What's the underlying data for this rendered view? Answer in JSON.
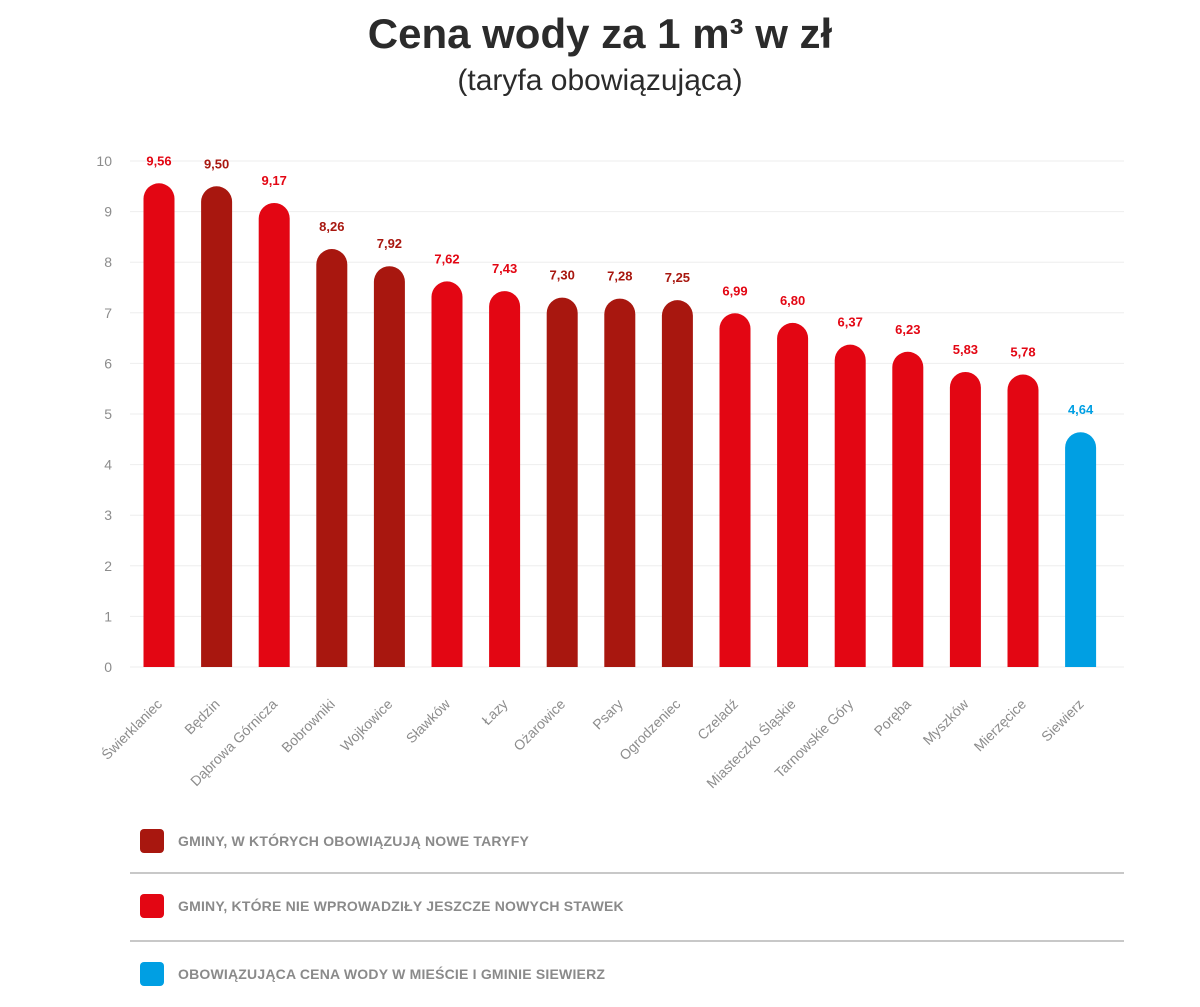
{
  "title": "Cena wody za 1 m³ w zł",
  "subtitle": "(taryfa obowiązująca)",
  "colors": {
    "new_tariff": "#a8170f",
    "no_new_rates": "#e30613",
    "siewierz": "#009fe3",
    "axis_text": "#8c8c8c",
    "grid": "#eeeeee"
  },
  "legend": [
    {
      "label": "GMINY, W KTÓRYCH OBOWIĄZUJĄ NOWE TARYFY",
      "color": "#a8170f"
    },
    {
      "label": "GMINY, KTÓRE NIE WPROWADZIŁY JESZCZE NOWYCH STAWEK",
      "color": "#e30613"
    },
    {
      "label": "OBOWIĄZUJĄCA CENA WODY W MIEŚCIE I GMINIE SIEWIERZ",
      "color": "#009fe3"
    }
  ],
  "chart_data": {
    "type": "bar",
    "title": "Cena wody za 1 m³ w zł",
    "subtitle": "(taryfa obowiązująca)",
    "xlabel": "",
    "ylabel": "",
    "ylim": [
      0,
      10
    ],
    "yticks": [
      0,
      1,
      2,
      3,
      4,
      5,
      6,
      7,
      8,
      9,
      10
    ],
    "grid": true,
    "legend_position": "bottom",
    "categories": [
      "Świerklaniec",
      "Będzin",
      "Dąbrowa Górnicza",
      "Bobrowniki",
      "Wojkowice",
      "Sławków",
      "Łazy",
      "Ożarowice",
      "Psary",
      "Ogrodzeniec",
      "Czeladź",
      "Miasteczko Śląskie",
      "Tarnowskie Góry",
      "Poręba",
      "Myszków",
      "Mierzęcice",
      "Siewierz"
    ],
    "values": [
      9.56,
      9.5,
      9.17,
      8.26,
      7.92,
      7.62,
      7.43,
      7.3,
      7.28,
      7.25,
      6.99,
      6.8,
      6.37,
      6.23,
      5.83,
      5.78,
      4.64
    ],
    "value_labels": [
      "9,56",
      "9,50",
      "9,17",
      "8,26",
      "7,92",
      "7,62",
      "7,43",
      "7,30",
      "7,28",
      "7,25",
      "6,99",
      "6,80",
      "6,37",
      "6,23",
      "5,83",
      "5,78",
      "4,64"
    ],
    "groups": [
      "no_new_rates",
      "new_tariff",
      "no_new_rates",
      "new_tariff",
      "new_tariff",
      "no_new_rates",
      "no_new_rates",
      "new_tariff",
      "new_tariff",
      "new_tariff",
      "no_new_rates",
      "no_new_rates",
      "no_new_rates",
      "no_new_rates",
      "no_new_rates",
      "no_new_rates",
      "siewierz"
    ]
  }
}
